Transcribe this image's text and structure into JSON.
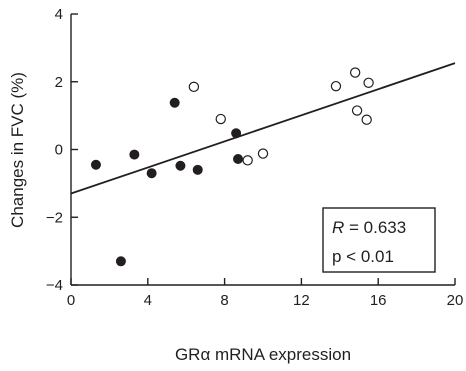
{
  "chart_data": {
    "type": "scatter",
    "xlabel": "GRα mRNA expression",
    "ylabel": "Changes in FVC (%)",
    "xlim": [
      0,
      20
    ],
    "ylim": [
      -4,
      4
    ],
    "x_ticks": [
      0,
      4,
      8,
      12,
      16,
      20
    ],
    "y_ticks": [
      -4,
      -2,
      0,
      2,
      4
    ],
    "grid": false,
    "marker_style_note": "filled and open circles",
    "series": [
      {
        "marker": "filled",
        "points": [
          [
            1.3,
            -0.45
          ],
          [
            2.6,
            -3.3
          ],
          [
            3.3,
            -0.15
          ],
          [
            4.2,
            -0.7
          ],
          [
            5.4,
            1.38
          ],
          [
            5.7,
            -0.48
          ],
          [
            6.6,
            -0.6
          ],
          [
            8.6,
            0.48
          ],
          [
            8.7,
            -0.28
          ]
        ]
      },
      {
        "marker": "open",
        "points": [
          [
            6.4,
            1.85
          ],
          [
            7.8,
            0.9
          ],
          [
            9.2,
            -0.32
          ],
          [
            10.0,
            -0.12
          ],
          [
            13.8,
            1.87
          ],
          [
            14.8,
            2.27
          ],
          [
            14.9,
            1.15
          ],
          [
            15.4,
            0.88
          ],
          [
            15.5,
            1.97
          ]
        ]
      }
    ],
    "regression_line": {
      "x": [
        0,
        20
      ],
      "y": [
        -1.3,
        2.55
      ]
    },
    "annotation": {
      "r_symbol": "R",
      "r_rest": " = 0.633",
      "p_text": "p < 0.01"
    }
  }
}
